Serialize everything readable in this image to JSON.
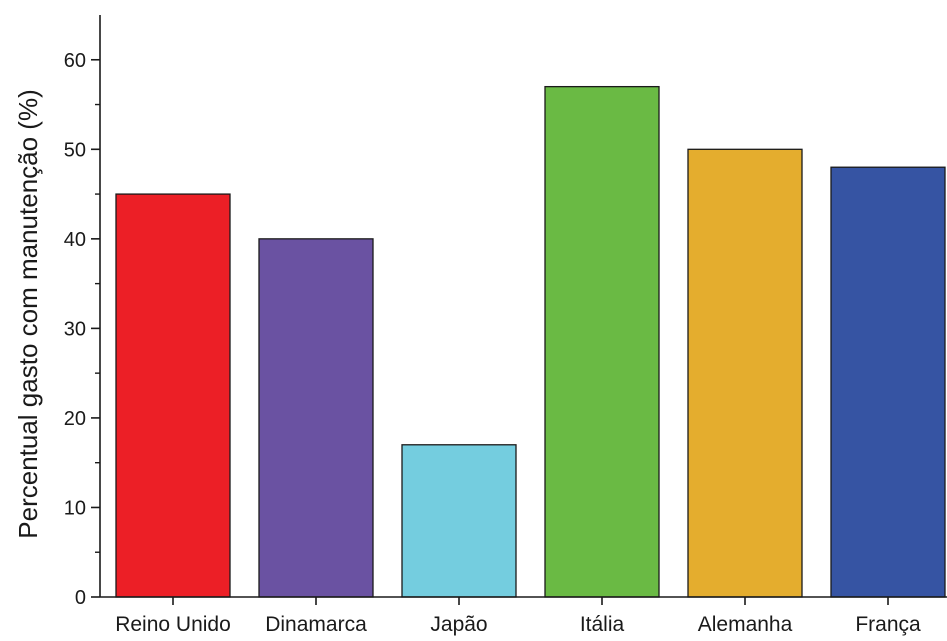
{
  "chart_data": {
    "type": "bar",
    "title": "",
    "xlabel": "",
    "ylabel": "Percentual gasto com manutenção (%)",
    "categories": [
      "Reino Unido",
      "Dinamarca",
      "Japão",
      "Itália",
      "Alemanha",
      "França"
    ],
    "values": [
      45,
      40,
      17,
      57,
      50,
      48
    ],
    "colors": [
      "#ec1f26",
      "#6a52a2",
      "#74cddf",
      "#6aba44",
      "#e4ad2e",
      "#3654a3"
    ],
    "ylim": [
      0,
      65
    ],
    "yticks": [
      0,
      10,
      20,
      30,
      40,
      50,
      60
    ],
    "grid": false,
    "legend": "none"
  }
}
